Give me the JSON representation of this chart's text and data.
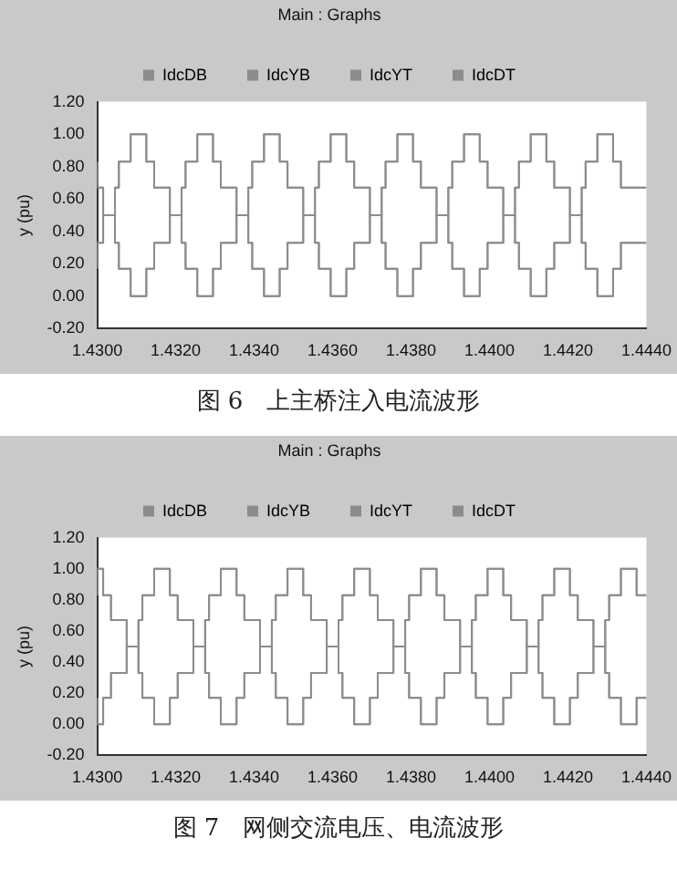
{
  "chart_data": [
    {
      "type": "step",
      "title": "Main : Graphs",
      "ylabel": "y (pu)",
      "annotations": [
        "图 6　上主桥注入电流波形"
      ],
      "legend": "top",
      "grid": false,
      "xlim": [
        1.43,
        1.444
      ],
      "xticks": [
        {
          "value": 1.43,
          "label": "1.4300"
        },
        {
          "value": 1.432,
          "label": "1.4320"
        },
        {
          "value": 1.434,
          "label": "1.4340"
        },
        {
          "value": 1.436,
          "label": "1.4360"
        },
        {
          "value": 1.438,
          "label": "1.4380"
        },
        {
          "value": 1.44,
          "label": "1.4400"
        },
        {
          "value": 1.442,
          "label": "1.4420"
        },
        {
          "value": 1.444,
          "label": "1.4440"
        }
      ],
      "ylim": [
        -0.2,
        1.2
      ],
      "yticks": [
        {
          "value": -0.2,
          "label": "-0.20"
        },
        {
          "value": 0,
          "label": "0.00"
        },
        {
          "value": 0.2,
          "label": "0.20"
        },
        {
          "value": 0.4,
          "label": "0.40"
        },
        {
          "value": 0.6,
          "label": "0.60"
        },
        {
          "value": 0.8,
          "label": "0.80"
        },
        {
          "value": 1,
          "label": "1.00"
        },
        {
          "value": 1.2,
          "label": "1.20"
        }
      ],
      "series": [
        {
          "name": "IdcDB",
          "color": "#8c8c8c",
          "x": [
            1.43,
            1.43015,
            1.43045,
            1.43055,
            1.43085,
            1.43125,
            1.43145,
            1.43185,
            1.43215,
            1.43225,
            1.43255,
            1.43295,
            1.43315,
            1.43355,
            1.43385,
            1.43395,
            1.43425,
            1.43465,
            1.43485,
            1.43525,
            1.43555,
            1.43565,
            1.43595,
            1.43635,
            1.43655,
            1.43695,
            1.43725,
            1.43735,
            1.43765,
            1.43805,
            1.43825,
            1.43865,
            1.43895,
            1.43905,
            1.43935,
            1.43975,
            1.43995,
            1.44035,
            1.44065,
            1.44075,
            1.44105,
            1.44145,
            1.44165,
            1.44205,
            1.44235,
            1.44245,
            1.44275,
            1.44315,
            1.44335,
            1.44375,
            1.444
          ],
          "values": [
            0.83,
            0.67,
            0.5,
            0.33,
            0.17,
            0,
            0.17,
            0.33,
            0.5,
            0.67,
            0.83,
            1,
            0.83,
            0.67,
            0.5,
            0.33,
            0.17,
            0,
            0.17,
            0.33,
            0.5,
            0.67,
            0.83,
            1,
            0.83,
            0.67,
            0.5,
            0.33,
            0.17,
            0,
            0.17,
            0.33,
            0.5,
            0.67,
            0.83,
            1,
            0.83,
            0.67,
            0.5,
            0.33,
            0.17,
            0,
            0.17,
            0.33,
            0.5,
            0.67,
            0.83,
            1,
            0.83,
            0.67,
            0.67
          ]
        },
        {
          "name": "IdcYB",
          "color": "#8c8c8c",
          "x": [
            1.43,
            1.43015,
            1.43045,
            1.43055,
            1.43085,
            1.43125,
            1.43145,
            1.43185,
            1.43215,
            1.43225,
            1.43255,
            1.43295,
            1.43315,
            1.43355,
            1.43385,
            1.43395,
            1.43425,
            1.43465,
            1.43485,
            1.43525,
            1.43555,
            1.43565,
            1.43595,
            1.43635,
            1.43655,
            1.43695,
            1.43725,
            1.43735,
            1.43765,
            1.43805,
            1.43825,
            1.43865,
            1.43895,
            1.43905,
            1.43935,
            1.43975,
            1.43995,
            1.44035,
            1.44065,
            1.44075,
            1.44105,
            1.44145,
            1.44165,
            1.44205,
            1.44235,
            1.44245,
            1.44275,
            1.44315,
            1.44335,
            1.44375,
            1.444
          ],
          "values": [
            0.17,
            0.33,
            0.5,
            0.67,
            0.83,
            1,
            0.83,
            0.67,
            0.5,
            0.33,
            0.17,
            0,
            0.17,
            0.33,
            0.5,
            0.67,
            0.83,
            1,
            0.83,
            0.67,
            0.5,
            0.33,
            0.17,
            0,
            0.17,
            0.33,
            0.5,
            0.67,
            0.83,
            1,
            0.83,
            0.67,
            0.5,
            0.33,
            0.17,
            0,
            0.17,
            0.33,
            0.5,
            0.67,
            0.83,
            1,
            0.83,
            0.67,
            0.5,
            0.33,
            0.17,
            0,
            0.17,
            0.33,
            0.33
          ]
        },
        {
          "name": "IdcYT",
          "color": "#8c8c8c",
          "x": [
            1.43,
            1.43015,
            1.43045,
            1.43055,
            1.43085,
            1.43125,
            1.43145,
            1.43185,
            1.43215,
            1.43225,
            1.43255,
            1.43295,
            1.43315,
            1.43355,
            1.43385,
            1.43395,
            1.43425,
            1.43465,
            1.43485,
            1.43525,
            1.43555,
            1.43565,
            1.43595,
            1.43635,
            1.43655,
            1.43695,
            1.43725,
            1.43735,
            1.43765,
            1.43805,
            1.43825,
            1.43865,
            1.43895,
            1.43905,
            1.43935,
            1.43975,
            1.43995,
            1.44035,
            1.44065,
            1.44075,
            1.44105,
            1.44145,
            1.44165,
            1.44205,
            1.44235,
            1.44245,
            1.44275,
            1.44315,
            1.44335,
            1.44375,
            1.444
          ],
          "values": [
            0.83,
            0.67,
            0.5,
            0.33,
            0.17,
            0,
            0.17,
            0.33,
            0.5,
            0.67,
            0.83,
            1,
            0.83,
            0.67,
            0.5,
            0.33,
            0.17,
            0,
            0.17,
            0.33,
            0.5,
            0.67,
            0.83,
            1,
            0.83,
            0.67,
            0.5,
            0.33,
            0.17,
            0,
            0.17,
            0.33,
            0.5,
            0.67,
            0.83,
            1,
            0.83,
            0.67,
            0.5,
            0.33,
            0.17,
            0,
            0.17,
            0.33,
            0.5,
            0.67,
            0.83,
            1,
            0.83,
            0.67,
            0.67
          ]
        },
        {
          "name": "IdcDT",
          "color": "#8c8c8c",
          "x": [
            1.43,
            1.43015,
            1.43045,
            1.43055,
            1.43085,
            1.43125,
            1.43145,
            1.43185,
            1.43215,
            1.43225,
            1.43255,
            1.43295,
            1.43315,
            1.43355,
            1.43385,
            1.43395,
            1.43425,
            1.43465,
            1.43485,
            1.43525,
            1.43555,
            1.43565,
            1.43595,
            1.43635,
            1.43655,
            1.43695,
            1.43725,
            1.43735,
            1.43765,
            1.43805,
            1.43825,
            1.43865,
            1.43895,
            1.43905,
            1.43935,
            1.43975,
            1.43995,
            1.44035,
            1.44065,
            1.44075,
            1.44105,
            1.44145,
            1.44165,
            1.44205,
            1.44235,
            1.44245,
            1.44275,
            1.44315,
            1.44335,
            1.44375,
            1.444
          ],
          "values": [
            0.17,
            0.33,
            0.5,
            0.67,
            0.83,
            1,
            0.83,
            0.67,
            0.5,
            0.33,
            0.17,
            0,
            0.17,
            0.33,
            0.5,
            0.67,
            0.83,
            1,
            0.83,
            0.67,
            0.5,
            0.33,
            0.17,
            0,
            0.17,
            0.33,
            0.5,
            0.67,
            0.83,
            1,
            0.83,
            0.67,
            0.5,
            0.33,
            0.17,
            0,
            0.17,
            0.33,
            0.5,
            0.67,
            0.83,
            1,
            0.83,
            0.67,
            0.5,
            0.33,
            0.17,
            0,
            0.17,
            0.33,
            0.33
          ]
        }
      ]
    },
    {
      "type": "step",
      "title": "Main : Graphs",
      "ylabel": "y (pu)",
      "annotations": [
        "图 7　网侧交流电压、电流波形"
      ],
      "legend": "top",
      "grid": false,
      "xlim": [
        1.43,
        1.444
      ],
      "xticks": [
        {
          "value": 1.43,
          "label": "1.4300"
        },
        {
          "value": 1.432,
          "label": "1.4320"
        },
        {
          "value": 1.434,
          "label": "1.4340"
        },
        {
          "value": 1.436,
          "label": "1.4360"
        },
        {
          "value": 1.438,
          "label": "1.4380"
        },
        {
          "value": 1.44,
          "label": "1.4400"
        },
        {
          "value": 1.442,
          "label": "1.4420"
        },
        {
          "value": 1.444,
          "label": "1.4440"
        }
      ],
      "ylim": [
        -0.2,
        1.2
      ],
      "yticks": [
        {
          "value": -0.2,
          "label": "-0.20"
        },
        {
          "value": 0,
          "label": "0.00"
        },
        {
          "value": 0.2,
          "label": "0.20"
        },
        {
          "value": 0.4,
          "label": "0.40"
        },
        {
          "value": 0.6,
          "label": "0.60"
        },
        {
          "value": 0.8,
          "label": "0.80"
        },
        {
          "value": 1,
          "label": "1.00"
        },
        {
          "value": 1.2,
          "label": "1.20"
        }
      ],
      "series": [
        {
          "name": "IdcDB",
          "color": "#8c8c8c",
          "x": [
            1.43,
            1.43015,
            1.43035,
            1.43075,
            1.43105,
            1.43115,
            1.43145,
            1.43185,
            1.43205,
            1.43245,
            1.43275,
            1.43285,
            1.43315,
            1.43355,
            1.43375,
            1.43415,
            1.43445,
            1.43455,
            1.43485,
            1.43525,
            1.43545,
            1.43585,
            1.43615,
            1.43625,
            1.43655,
            1.43695,
            1.43715,
            1.43755,
            1.43785,
            1.43795,
            1.43825,
            1.43865,
            1.43885,
            1.43925,
            1.43955,
            1.43965,
            1.43995,
            1.44035,
            1.44055,
            1.44095,
            1.44125,
            1.44135,
            1.44165,
            1.44205,
            1.44225,
            1.44265,
            1.44295,
            1.44305,
            1.44335,
            1.44375,
            1.44395,
            1.444
          ],
          "values": [
            0.83,
            1,
            0.83,
            0.67,
            0.5,
            0.33,
            0.17,
            0,
            0.17,
            0.33,
            0.5,
            0.67,
            0.83,
            1,
            0.83,
            0.67,
            0.5,
            0.33,
            0.17,
            0,
            0.17,
            0.33,
            0.5,
            0.67,
            0.83,
            1,
            0.83,
            0.67,
            0.5,
            0.33,
            0.17,
            0,
            0.17,
            0.33,
            0.5,
            0.67,
            0.83,
            1,
            0.83,
            0.67,
            0.5,
            0.33,
            0.17,
            0,
            0.17,
            0.33,
            0.5,
            0.67,
            0.83,
            1,
            0.83,
            0.83
          ]
        },
        {
          "name": "IdcYB",
          "color": "#8c8c8c",
          "x": [
            1.43,
            1.43015,
            1.43035,
            1.43075,
            1.43105,
            1.43115,
            1.43145,
            1.43185,
            1.43205,
            1.43245,
            1.43275,
            1.43285,
            1.43315,
            1.43355,
            1.43375,
            1.43415,
            1.43445,
            1.43455,
            1.43485,
            1.43525,
            1.43545,
            1.43585,
            1.43615,
            1.43625,
            1.43655,
            1.43695,
            1.43715,
            1.43755,
            1.43785,
            1.43795,
            1.43825,
            1.43865,
            1.43885,
            1.43925,
            1.43955,
            1.43965,
            1.43995,
            1.44035,
            1.44055,
            1.44095,
            1.44125,
            1.44135,
            1.44165,
            1.44205,
            1.44225,
            1.44265,
            1.44295,
            1.44305,
            1.44335,
            1.44375,
            1.44395,
            1.444
          ],
          "values": [
            0.17,
            0,
            0.17,
            0.33,
            0.5,
            0.67,
            0.83,
            1,
            0.83,
            0.67,
            0.5,
            0.33,
            0.17,
            0,
            0.17,
            0.33,
            0.5,
            0.67,
            0.83,
            1,
            0.83,
            0.67,
            0.5,
            0.33,
            0.17,
            0,
            0.17,
            0.33,
            0.5,
            0.67,
            0.83,
            1,
            0.83,
            0.67,
            0.5,
            0.33,
            0.17,
            0,
            0.17,
            0.33,
            0.5,
            0.67,
            0.83,
            1,
            0.83,
            0.67,
            0.5,
            0.33,
            0.17,
            0,
            0.17,
            0.17
          ]
        },
        {
          "name": "IdcYT",
          "color": "#8c8c8c",
          "x": [
            1.43,
            1.43015,
            1.43035,
            1.43075,
            1.43105,
            1.43115,
            1.43145,
            1.43185,
            1.43205,
            1.43245,
            1.43275,
            1.43285,
            1.43315,
            1.43355,
            1.43375,
            1.43415,
            1.43445,
            1.43455,
            1.43485,
            1.43525,
            1.43545,
            1.43585,
            1.43615,
            1.43625,
            1.43655,
            1.43695,
            1.43715,
            1.43755,
            1.43785,
            1.43795,
            1.43825,
            1.43865,
            1.43885,
            1.43925,
            1.43955,
            1.43965,
            1.43995,
            1.44035,
            1.44055,
            1.44095,
            1.44125,
            1.44135,
            1.44165,
            1.44205,
            1.44225,
            1.44265,
            1.44295,
            1.44305,
            1.44335,
            1.44375,
            1.44395,
            1.444
          ],
          "values": [
            0.83,
            1,
            0.83,
            0.67,
            0.5,
            0.33,
            0.17,
            0,
            0.17,
            0.33,
            0.5,
            0.67,
            0.83,
            1,
            0.83,
            0.67,
            0.5,
            0.33,
            0.17,
            0,
            0.17,
            0.33,
            0.5,
            0.67,
            0.83,
            1,
            0.83,
            0.67,
            0.5,
            0.33,
            0.17,
            0,
            0.17,
            0.33,
            0.5,
            0.67,
            0.83,
            1,
            0.83,
            0.67,
            0.5,
            0.33,
            0.17,
            0,
            0.17,
            0.33,
            0.5,
            0.67,
            0.83,
            1,
            0.83,
            0.83
          ]
        },
        {
          "name": "IdcDT",
          "color": "#8c8c8c",
          "x": [
            1.43,
            1.43015,
            1.43035,
            1.43075,
            1.43105,
            1.43115,
            1.43145,
            1.43185,
            1.43205,
            1.43245,
            1.43275,
            1.43285,
            1.43315,
            1.43355,
            1.43375,
            1.43415,
            1.43445,
            1.43455,
            1.43485,
            1.43525,
            1.43545,
            1.43585,
            1.43615,
            1.43625,
            1.43655,
            1.43695,
            1.43715,
            1.43755,
            1.43785,
            1.43795,
            1.43825,
            1.43865,
            1.43885,
            1.43925,
            1.43955,
            1.43965,
            1.43995,
            1.44035,
            1.44055,
            1.44095,
            1.44125,
            1.44135,
            1.44165,
            1.44205,
            1.44225,
            1.44265,
            1.44295,
            1.44305,
            1.44335,
            1.44375,
            1.44395,
            1.444
          ],
          "values": [
            0.17,
            0,
            0.17,
            0.33,
            0.5,
            0.67,
            0.83,
            1,
            0.83,
            0.67,
            0.5,
            0.33,
            0.17,
            0,
            0.17,
            0.33,
            0.5,
            0.67,
            0.83,
            1,
            0.83,
            0.67,
            0.5,
            0.33,
            0.17,
            0,
            0.17,
            0.33,
            0.5,
            0.67,
            0.83,
            1,
            0.83,
            0.67,
            0.5,
            0.33,
            0.17,
            0,
            0.17,
            0.33,
            0.5,
            0.67,
            0.83,
            1,
            0.83,
            0.67,
            0.5,
            0.33,
            0.17,
            0,
            0.17,
            0.17
          ]
        }
      ]
    }
  ]
}
